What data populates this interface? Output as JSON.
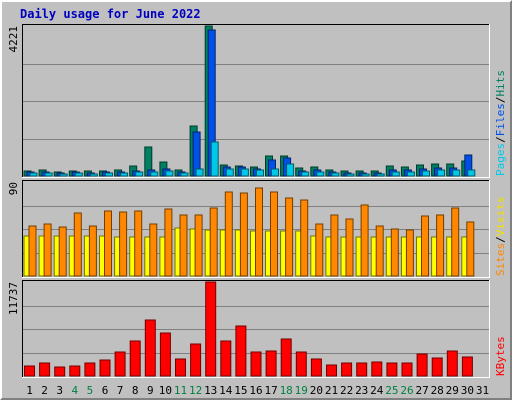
{
  "chart_data": {
    "type": "bar",
    "title": "Daily usage for June 2022",
    "categories": [
      "1",
      "2",
      "3",
      "4",
      "5",
      "6",
      "7",
      "8",
      "9",
      "10",
      "11",
      "12",
      "13",
      "14",
      "15",
      "16",
      "17",
      "18",
      "19",
      "20",
      "21",
      "22",
      "23",
      "24",
      "25",
      "26",
      "27",
      "28",
      "29",
      "30",
      "31"
    ],
    "weekend_days": [
      "4",
      "5",
      "11",
      "12",
      "18",
      "19",
      "25",
      "26"
    ],
    "panels": [
      {
        "max_label": "4221",
        "ylim": [
          0,
          4221
        ],
        "legend": [
          "Pages",
          "/",
          "Files",
          "/",
          "Hits"
        ],
        "legend_colors": [
          "#00c8e8",
          "#000000",
          "#0050e8",
          "#000000",
          "#008060"
        ],
        "series": [
          {
            "name": "Hits",
            "color": "#008060",
            "values": [
              150,
              160,
              120,
              150,
              130,
              140,
              170,
              280,
              830,
              400,
              180,
              1420,
              4221,
              300,
              290,
              260,
              550,
              560,
              220,
              250,
              180,
              140,
              130,
              140,
              270,
              260,
              300,
              340,
              330,
              420,
              0
            ]
          },
          {
            "name": "Files",
            "color": "#0050e8",
            "values": [
              100,
              110,
              80,
              100,
              90,
              100,
              110,
              150,
              180,
              200,
              110,
              1250,
              4100,
              250,
              240,
              200,
              450,
              500,
              150,
              170,
              110,
              80,
              80,
              80,
              180,
              170,
              200,
              230,
              230,
              600,
              0
            ]
          },
          {
            "name": "Pages",
            "color": "#00c8e8",
            "values": [
              80,
              90,
              60,
              80,
              70,
              80,
              90,
              110,
              120,
              130,
              80,
              200,
              950,
              200,
              190,
              170,
              210,
              330,
              110,
              120,
              80,
              60,
              60,
              60,
              120,
              110,
              130,
              160,
              160,
              170,
              0
            ]
          }
        ]
      },
      {
        "max_label": "90",
        "ylim": [
          0,
          90
        ],
        "legend": [
          "Sites",
          "/",
          "Visits"
        ],
        "legend_colors": [
          "#ff8800",
          "#000000",
          "#f0e000"
        ],
        "series": [
          {
            "name": "Visits",
            "color": "#ffff00",
            "values": [
              38,
              38,
              38,
              38,
              38,
              38,
              37,
              37,
              37,
              37,
              46,
              45,
              44,
              44,
              44,
              43,
              43,
              43,
              43,
              38,
              37,
              37,
              37,
              37,
              37,
              37,
              37,
              37,
              37,
              37,
              0
            ]
          },
          {
            "name": "Sites",
            "color": "#ff8800",
            "values": [
              48,
              50,
              47,
              60,
              48,
              62,
              61,
              62,
              50,
              64,
              58,
              58,
              65,
              80,
              79,
              84,
              80,
              75,
              73,
              50,
              58,
              55,
              68,
              48,
              45,
              44,
              57,
              58,
              65,
              52,
              0
            ]
          }
        ]
      },
      {
        "max_label": "11737",
        "ylim": [
          0,
          11737
        ],
        "legend": [
          "KBytes"
        ],
        "legend_colors": [
          "#ff0000"
        ],
        "series": [
          {
            "name": "KBytes",
            "color": "#ff0000",
            "values": [
              1250,
              1620,
              1080,
              1250,
              1620,
              2020,
              3000,
              4350,
              7050,
              5400,
              2150,
              4050,
              11737,
              4400,
              6300,
              3000,
              3150,
              4600,
              3000,
              2150,
              1350,
              1620,
              1620,
              1710,
              1620,
              1620,
              2700,
              2250,
              3150,
              2430,
              0
            ]
          }
        ]
      }
    ]
  }
}
